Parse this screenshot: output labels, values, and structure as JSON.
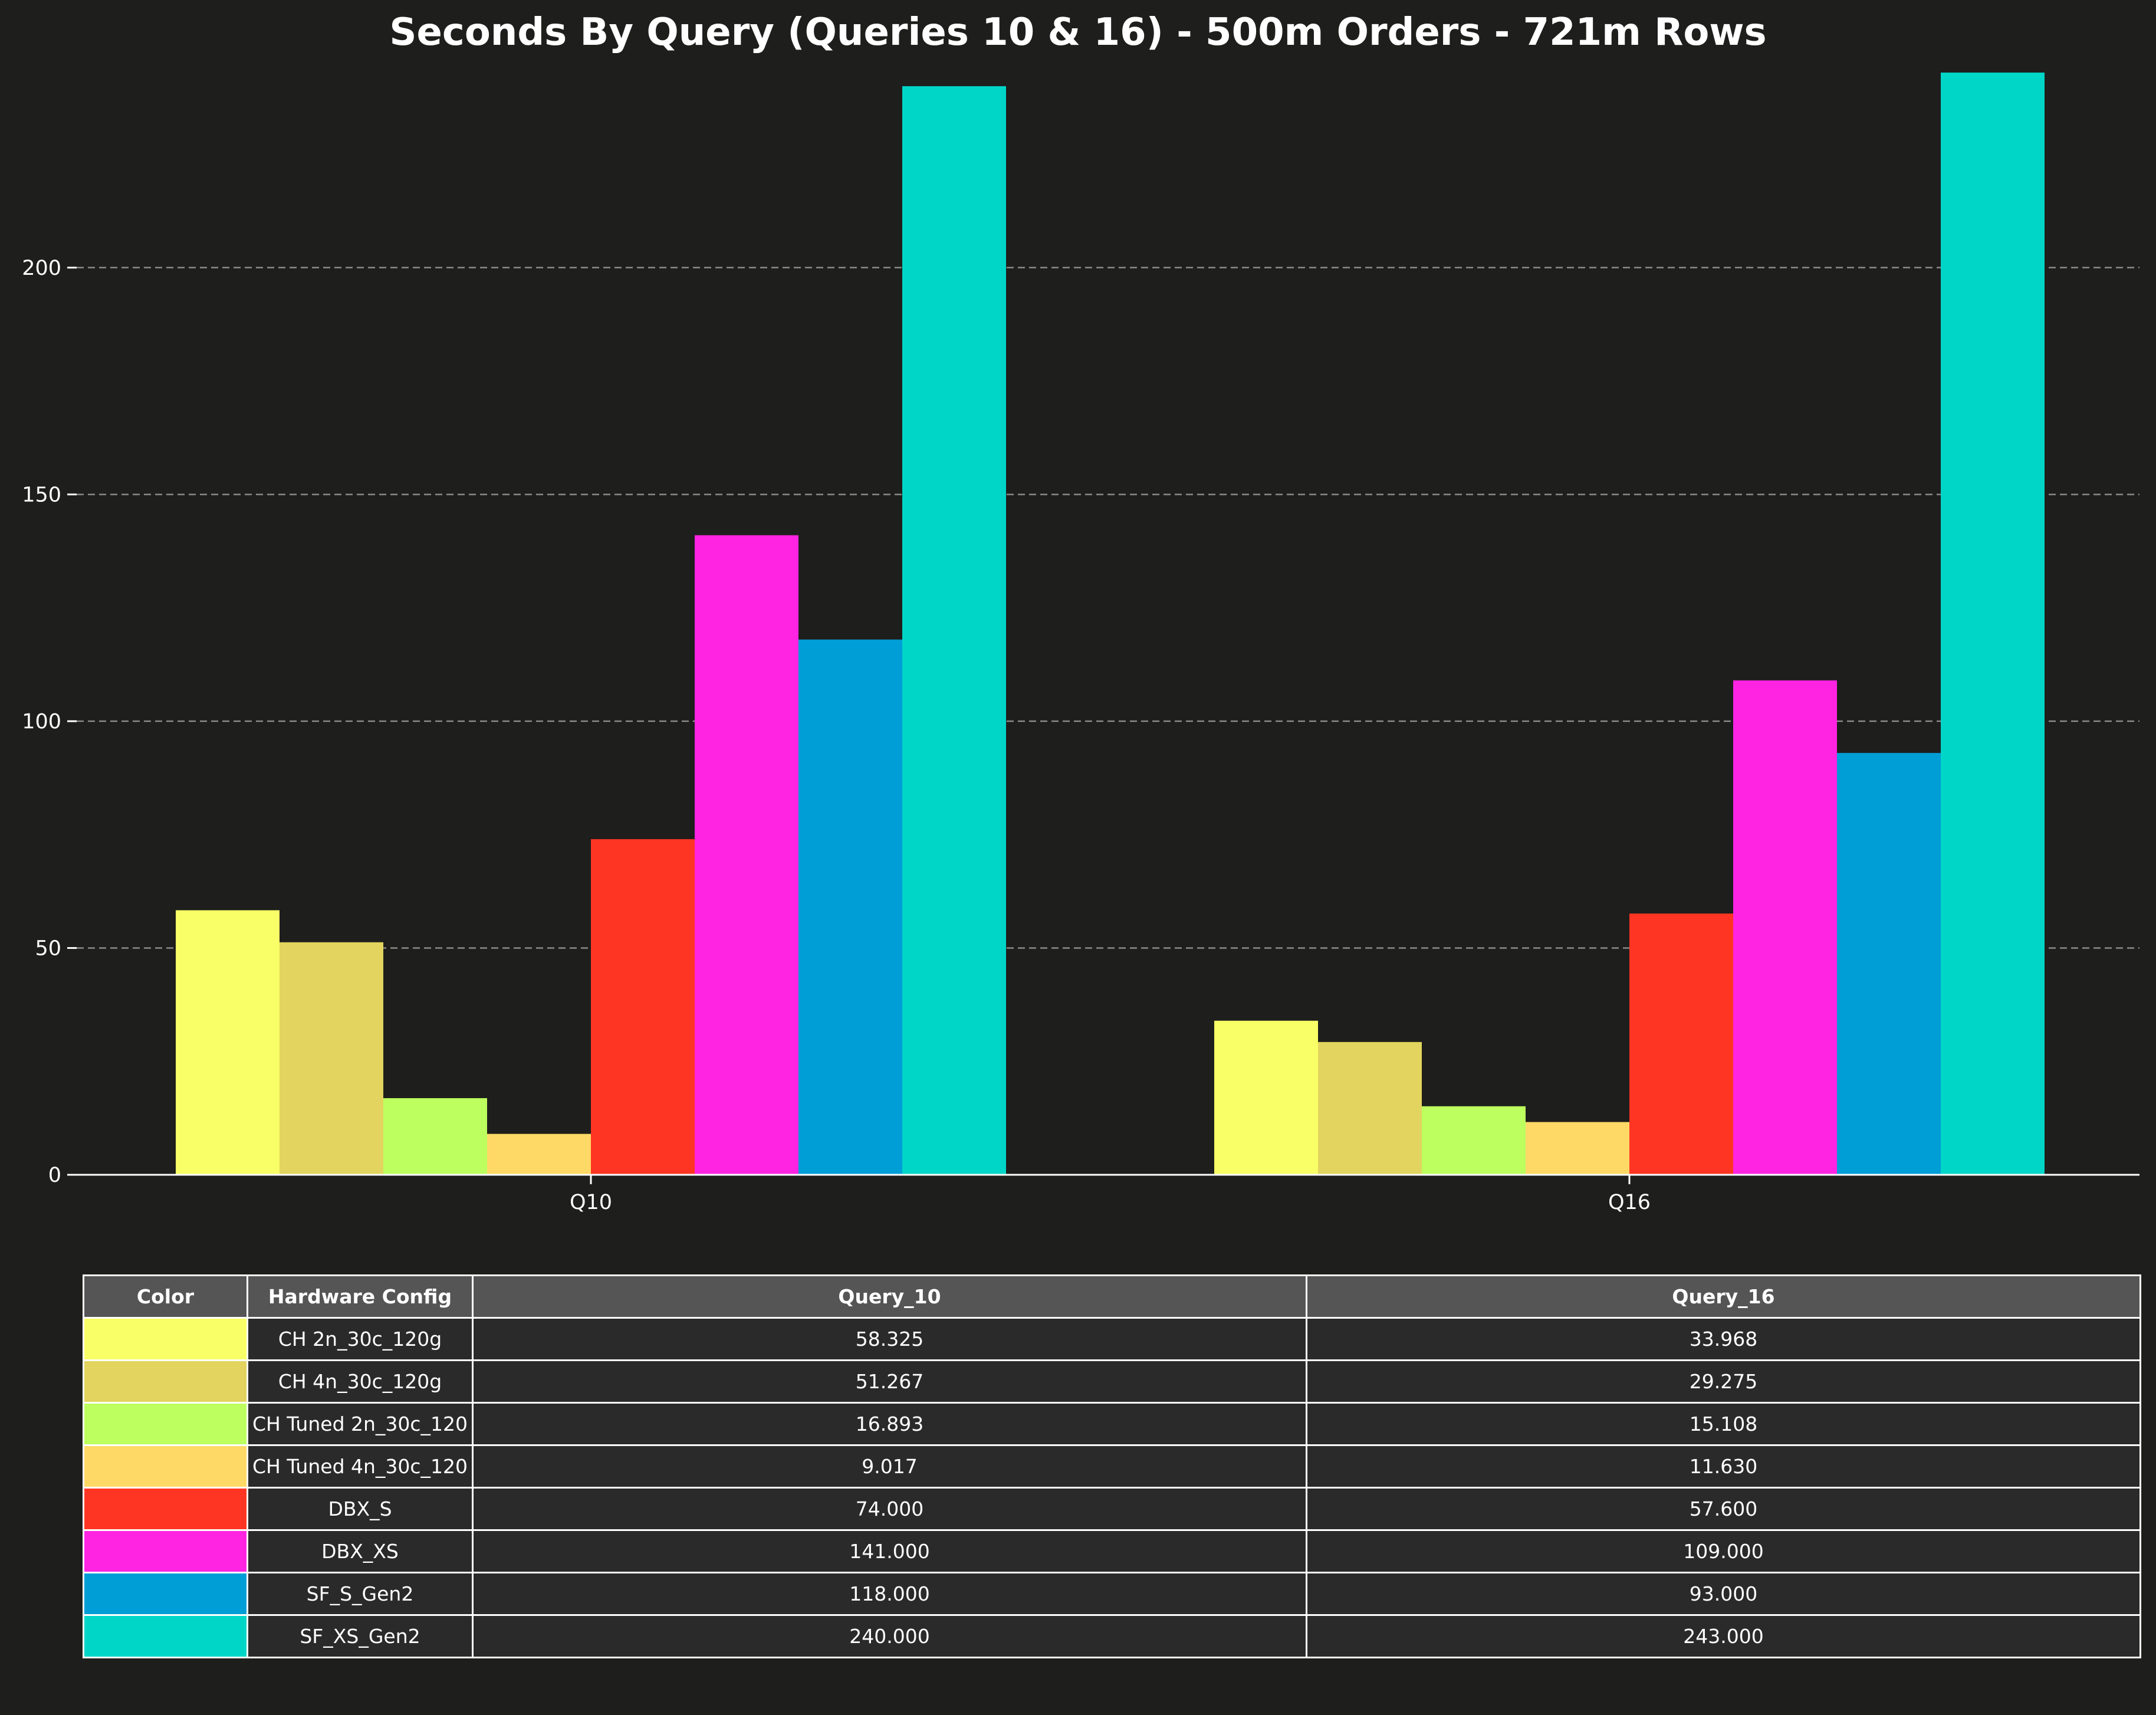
{
  "chart_data": {
    "type": "bar",
    "title": "Seconds By Query (Queries 10 & 16) - 500m Orders - 721m Rows",
    "xlabel": "",
    "ylabel": "",
    "categories": [
      "Q10",
      "Q16"
    ],
    "ylim": [
      0,
      246
    ],
    "yticks": [
      0,
      50,
      100,
      150,
      200
    ],
    "grid": "horizontal dashed",
    "series": [
      {
        "name": "CH 2n_30c_120g",
        "color": "#f9ff66",
        "values": [
          58.325,
          33.968
        ]
      },
      {
        "name": "CH 4n_30c_120g",
        "color": "#e2d45e",
        "values": [
          51.267,
          29.275
        ]
      },
      {
        "name": "CH Tuned 2n_30c_120",
        "color": "#bcff5e",
        "values": [
          16.893,
          15.108
        ]
      },
      {
        "name": "CH Tuned 4n_30c_120",
        "color": "#ffd966",
        "values": [
          9.017,
          11.63
        ]
      },
      {
        "name": "DBX_S",
        "color": "#ff3524",
        "values": [
          74.0,
          57.6
        ]
      },
      {
        "name": "DBX_XS",
        "color": "#ff24e2",
        "values": [
          141.0,
          109.0
        ]
      },
      {
        "name": "SF_S_Gen2",
        "color": "#009ed6",
        "values": [
          118.0,
          93.0
        ]
      },
      {
        "name": "SF_XS_Gen2",
        "color": "#00d6c8",
        "values": [
          240.0,
          243.0
        ]
      }
    ]
  },
  "table": {
    "headers": [
      "Color",
      "Hardware Config",
      "Query_10",
      "Query_16"
    ],
    "rows": [
      {
        "config": "CH 2n_30c_120g",
        "q10": "58.325",
        "q16": "33.968"
      },
      {
        "config": "CH 4n_30c_120g",
        "q10": "51.267",
        "q16": "29.275"
      },
      {
        "config": "CH Tuned 2n_30c_120",
        "q10": "16.893",
        "q16": "15.108"
      },
      {
        "config": "CH Tuned 4n_30c_120",
        "q10": "9.017",
        "q16": "11.630"
      },
      {
        "config": "DBX_S",
        "q10": "74.000",
        "q16": "57.600"
      },
      {
        "config": "DBX_XS",
        "q10": "141.000",
        "q16": "109.000"
      },
      {
        "config": "SF_S_Gen2",
        "q10": "118.000",
        "q16": "93.000"
      },
      {
        "config": "SF_XS_Gen2",
        "q10": "240.000",
        "q16": "243.000"
      }
    ]
  }
}
